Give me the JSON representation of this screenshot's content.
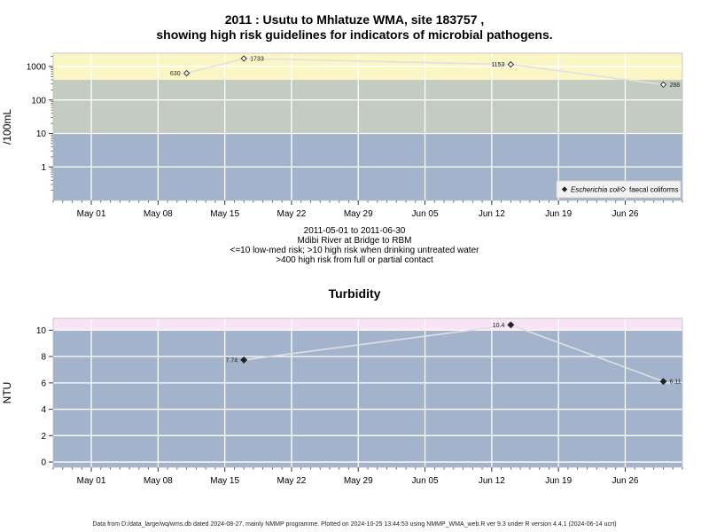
{
  "titles": {
    "line1": "2011 : Usutu to Mhlatuze WMA, site 183757 ,",
    "line2": "showing high risk guidelines for indicators of microbial pathogens.",
    "date_range": "2011-05-01 to 2011-06-30",
    "location": "Mdibi River at Bridge to RBM",
    "guideline1": "<=10 low-med risk; >10 high risk when drinking untreated water",
    "guideline2": ">400 high risk from full or partial contact",
    "turbidity": "Turbidity"
  },
  "footer": "Data from D:/data_large/wq/wms.db dated 2024-08-27, mainly NMMP programme. Plotted on 2024-10-25 13:44:53 using NMMP_WMA_web.R ver 9.3 under R version 4.4.1 (2024-06-14 ucrt)",
  "colors": {
    "band_low": "#a3b3cb",
    "band_mid": "#c4ccc1",
    "band_high": "#fbf6c6",
    "band_turb_high": "#f9e3f6",
    "grid": "#ffffff",
    "series_line": "#e0e0e0",
    "axis": "#333333"
  },
  "chart_data": [
    {
      "type": "line",
      "title": "",
      "ylabel": "/100mL",
      "yscale": "log",
      "ylim": [
        0.1,
        2500
      ],
      "xlim": [
        "2011-04-27",
        "2011-07-02"
      ],
      "x_ticks": [
        "2011-05-01",
        "2011-05-08",
        "2011-05-15",
        "2011-05-22",
        "2011-05-29",
        "2011-06-05",
        "2011-06-12",
        "2011-06-19",
        "2011-06-26"
      ],
      "x_tick_labels": [
        "May 01",
        "May 08",
        "May 15",
        "May 22",
        "May 29",
        "Jun 05",
        "Jun 12",
        "Jun 19",
        "Jun 26"
      ],
      "y_ticks": [
        1,
        10,
        100,
        1000
      ],
      "y_tick_labels": [
        "1",
        "10",
        "100",
        "1000"
      ],
      "bands": [
        {
          "from": 0.1,
          "to": 10,
          "color": "#a3b3cb"
        },
        {
          "from": 10,
          "to": 400,
          "color": "#c4ccc1"
        },
        {
          "from": 400,
          "to": 2500,
          "color": "#fbf6c6"
        }
      ],
      "legend": {
        "position": "bottom-right",
        "entries": [
          {
            "label": "Escherichia coli",
            "marker": "filled-diamond",
            "italic": true
          },
          {
            "label": "faecal coliforms",
            "marker": "open-diamond",
            "italic": false
          }
        ]
      },
      "series": [
        {
          "name": "faecal coliforms",
          "marker": "open-diamond",
          "x": [
            "2011-05-11",
            "2011-05-17",
            "2011-06-14",
            "2011-06-30"
          ],
          "y": [
            630,
            1733,
            1153,
            288
          ],
          "labels": [
            "630",
            "1733",
            "1153",
            "288"
          ],
          "label_side": [
            "left",
            "right",
            "left",
            "right"
          ]
        }
      ]
    },
    {
      "type": "line",
      "title": "Turbidity",
      "ylabel": "NTU",
      "yscale": "linear",
      "ylim": [
        -0.4,
        10.9
      ],
      "xlim": [
        "2011-04-27",
        "2011-07-02"
      ],
      "x_ticks": [
        "2011-05-01",
        "2011-05-08",
        "2011-05-15",
        "2011-05-22",
        "2011-05-29",
        "2011-06-05",
        "2011-06-12",
        "2011-06-19",
        "2011-06-26"
      ],
      "x_tick_labels": [
        "May 01",
        "May 08",
        "May 15",
        "May 22",
        "May 29",
        "Jun 05",
        "Jun 12",
        "Jun 19",
        "Jun 26"
      ],
      "y_ticks": [
        0,
        2,
        4,
        6,
        8,
        10
      ],
      "y_tick_labels": [
        "0",
        "2",
        "4",
        "6",
        "8",
        "10"
      ],
      "bands": [
        {
          "from": -0.4,
          "to": 10,
          "color": "#a3b3cb"
        },
        {
          "from": 10,
          "to": 10.9,
          "color": "#f9e3f6"
        }
      ],
      "series": [
        {
          "name": "",
          "marker": "filled-diamond",
          "x": [
            "2011-05-17",
            "2011-06-14",
            "2011-06-30"
          ],
          "y": [
            7.74,
            10.4,
            6.11
          ],
          "labels": [
            "7.74",
            "10.4",
            "6.11"
          ],
          "label_side": [
            "left",
            "left",
            "right"
          ]
        }
      ]
    }
  ]
}
